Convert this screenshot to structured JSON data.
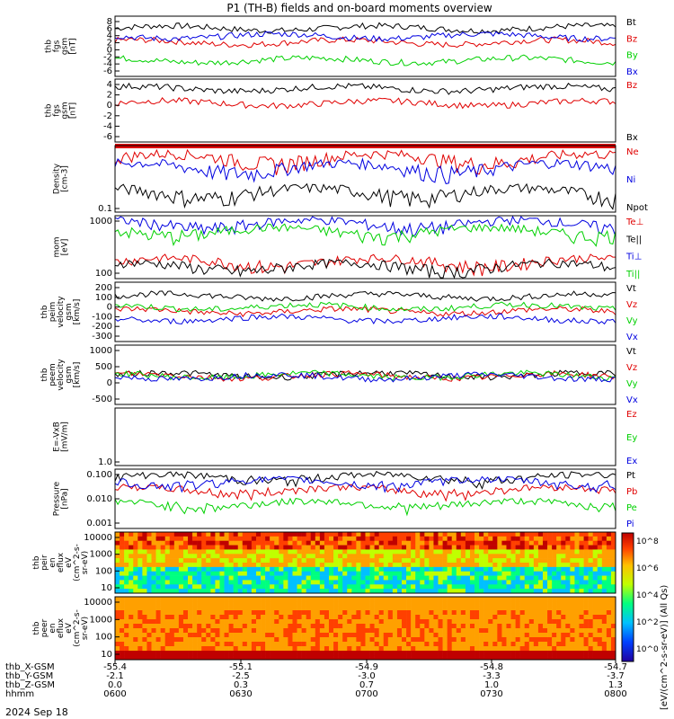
{
  "title": "P1 (TH-B) fields and on-board moments overview",
  "date_label": "2024 Sep 18",
  "colorbar_label": "[eV/(cm^2-s-sr-eV)] (All Qs)",
  "colorbar_ticks": [
    "10^8",
    "10^6",
    "10^4",
    "10^2",
    "10^0"
  ],
  "colors": {
    "black": "#000000",
    "red": "#e00000",
    "green": "#00d000",
    "blue": "#0000e0"
  },
  "ephemeris": {
    "labels": [
      "thb_X-GSM",
      "thb_Y-GSM",
      "thb_Z-GSM",
      "hhmm"
    ],
    "columns": [
      [
        "-55.4",
        "-2.1",
        "0.0",
        "0600"
      ],
      [
        "-55.1",
        "-2.5",
        "0.3",
        "0630"
      ],
      [
        "-54.9",
        "-3.0",
        "0.7",
        "0700"
      ],
      [
        "-54.8",
        "-3.3",
        "1.0",
        "0730"
      ],
      [
        "-54.7",
        "-3.7",
        "1.3",
        "0800"
      ]
    ]
  },
  "chart_data": [
    {
      "type": "line",
      "panel": "fgs",
      "ylabel": [
        "thb",
        "fgs",
        "gsm",
        "[nT]"
      ],
      "ylim": [
        -6,
        9
      ],
      "tick_labels": [
        "8",
        "6",
        "4",
        "2",
        "0",
        "-2",
        "-4",
        "-6"
      ],
      "series": [
        {
          "name": "Bt",
          "color": "#000000",
          "level": 6.0
        },
        {
          "name": "Bz",
          "color": "#e00000",
          "level": 2.5
        },
        {
          "name": "By",
          "color": "#00d000",
          "level": -2.0
        },
        {
          "name": "Bx",
          "color": "#0000e0",
          "level": 4.0
        }
      ]
    },
    {
      "type": "line",
      "panel": "fgs2",
      "ylabel": [
        "thb",
        "fgs",
        "gsm",
        "[nT]"
      ],
      "ylim": [
        -8,
        5
      ],
      "tick_labels": [
        "4",
        "2",
        "0",
        "-2",
        "-4",
        "-6"
      ],
      "series": [
        {
          "name": "Bz",
          "color": "#e00000",
          "level": 0.0
        },
        {
          "name": "Bx",
          "color": "#000000",
          "level": 3.0
        }
      ]
    },
    {
      "type": "line",
      "panel": "density",
      "ylabel": [
        "Density",
        "[cm-3]"
      ],
      "ylim": [
        0.1,
        4
      ],
      "tick_labels": [
        "0.1"
      ],
      "series": [
        {
          "name": "Ne",
          "color": "#e00000",
          "level": 2.0
        },
        {
          "name": "Ni",
          "color": "#0000e0",
          "level": 1.2
        },
        {
          "name": "Npot",
          "color": "#000000",
          "level": 0.3
        }
      ]
    },
    {
      "type": "line",
      "panel": "temperature",
      "ylabel": [
        "mom",
        "[eV]"
      ],
      "ylim": [
        50,
        3000
      ],
      "tick_labels": [
        "1000",
        "100"
      ],
      "series": [
        {
          "name": "Te⊥",
          "color": "#e00000",
          "level": 150
        },
        {
          "name": "Te||",
          "color": "#000000",
          "level": 110
        },
        {
          "name": "Ti⊥",
          "color": "#0000e0",
          "level": 1800
        },
        {
          "name": "Ti||",
          "color": "#00d000",
          "level": 1100
        }
      ]
    },
    {
      "type": "line",
      "panel": "peim_velocity",
      "ylabel": [
        "thb",
        "peim",
        "velocity",
        "gsm",
        "[km/s]"
      ],
      "ylim": [
        -300,
        250
      ],
      "tick_labels": [
        "200",
        "100",
        "0",
        "-100",
        "-200",
        "-300"
      ],
      "series": [
        {
          "name": "Vt",
          "color": "#000000",
          "level": 120
        },
        {
          "name": "Vz",
          "color": "#e00000",
          "level": -20
        },
        {
          "name": "Vy",
          "color": "#00d000",
          "level": 20
        },
        {
          "name": "Vx",
          "color": "#0000e0",
          "level": -90
        }
      ]
    },
    {
      "type": "line",
      "panel": "peem_velocity",
      "ylabel": [
        "thb",
        "peem",
        "velocity",
        "gsm",
        "[km/s]"
      ],
      "ylim": [
        -1100,
        1200
      ],
      "tick_labels": [
        "1000",
        "500",
        "0",
        "-500"
      ],
      "series": [
        {
          "name": "Vt",
          "color": "#000000",
          "level": 40
        },
        {
          "name": "Vz",
          "color": "#e00000",
          "level": 0
        },
        {
          "name": "Vy",
          "color": "#00d000",
          "level": 20
        },
        {
          "name": "Vx",
          "color": "#0000e0",
          "level": -30
        }
      ]
    },
    {
      "type": "line",
      "panel": "efield",
      "ylabel": [
        "E=-VxB",
        "[mV/m]"
      ],
      "ylim": [
        -1,
        1
      ],
      "tick_labels": [
        "1.0"
      ],
      "series": [
        {
          "name": "Ez",
          "color": "#e00000"
        },
        {
          "name": "Ey",
          "color": "#00d000"
        },
        {
          "name": "Ex",
          "color": "#0000e0"
        }
      ]
    },
    {
      "type": "line",
      "panel": "pressure",
      "ylabel": [
        "Pressure",
        "[nPa]"
      ],
      "ylim": [
        0.0007,
        0.12
      ],
      "tick_labels": [
        "0.100",
        "0.010",
        "0.001"
      ],
      "series": [
        {
          "name": "Pt",
          "color": "#000000",
          "level": 0.06
        },
        {
          "name": "Pb",
          "color": "#e00000",
          "level": 0.02
        },
        {
          "name": "Pe",
          "color": "#00d000",
          "level": 0.006
        },
        {
          "name": "Pi",
          "color": "#0000e0",
          "level": 0.04
        }
      ]
    },
    {
      "type": "heatmap",
      "panel": "peir",
      "ylabel": [
        "thb",
        "peir",
        "en",
        "eflux",
        "eV",
        "(cm^2-s-",
        "sr-eV)"
      ],
      "ylim": [
        10,
        20000
      ],
      "tick_labels": [
        "10000",
        "1000",
        "100",
        "10"
      ]
    },
    {
      "type": "heatmap",
      "panel": "peer",
      "ylabel": [
        "thb",
        "peer",
        "en",
        "eflux",
        "eV",
        "(cm^2-s-",
        "sr-eV)"
      ],
      "ylim": [
        7,
        20000
      ],
      "tick_labels": [
        "10000",
        "1000",
        "100",
        "10"
      ]
    }
  ]
}
